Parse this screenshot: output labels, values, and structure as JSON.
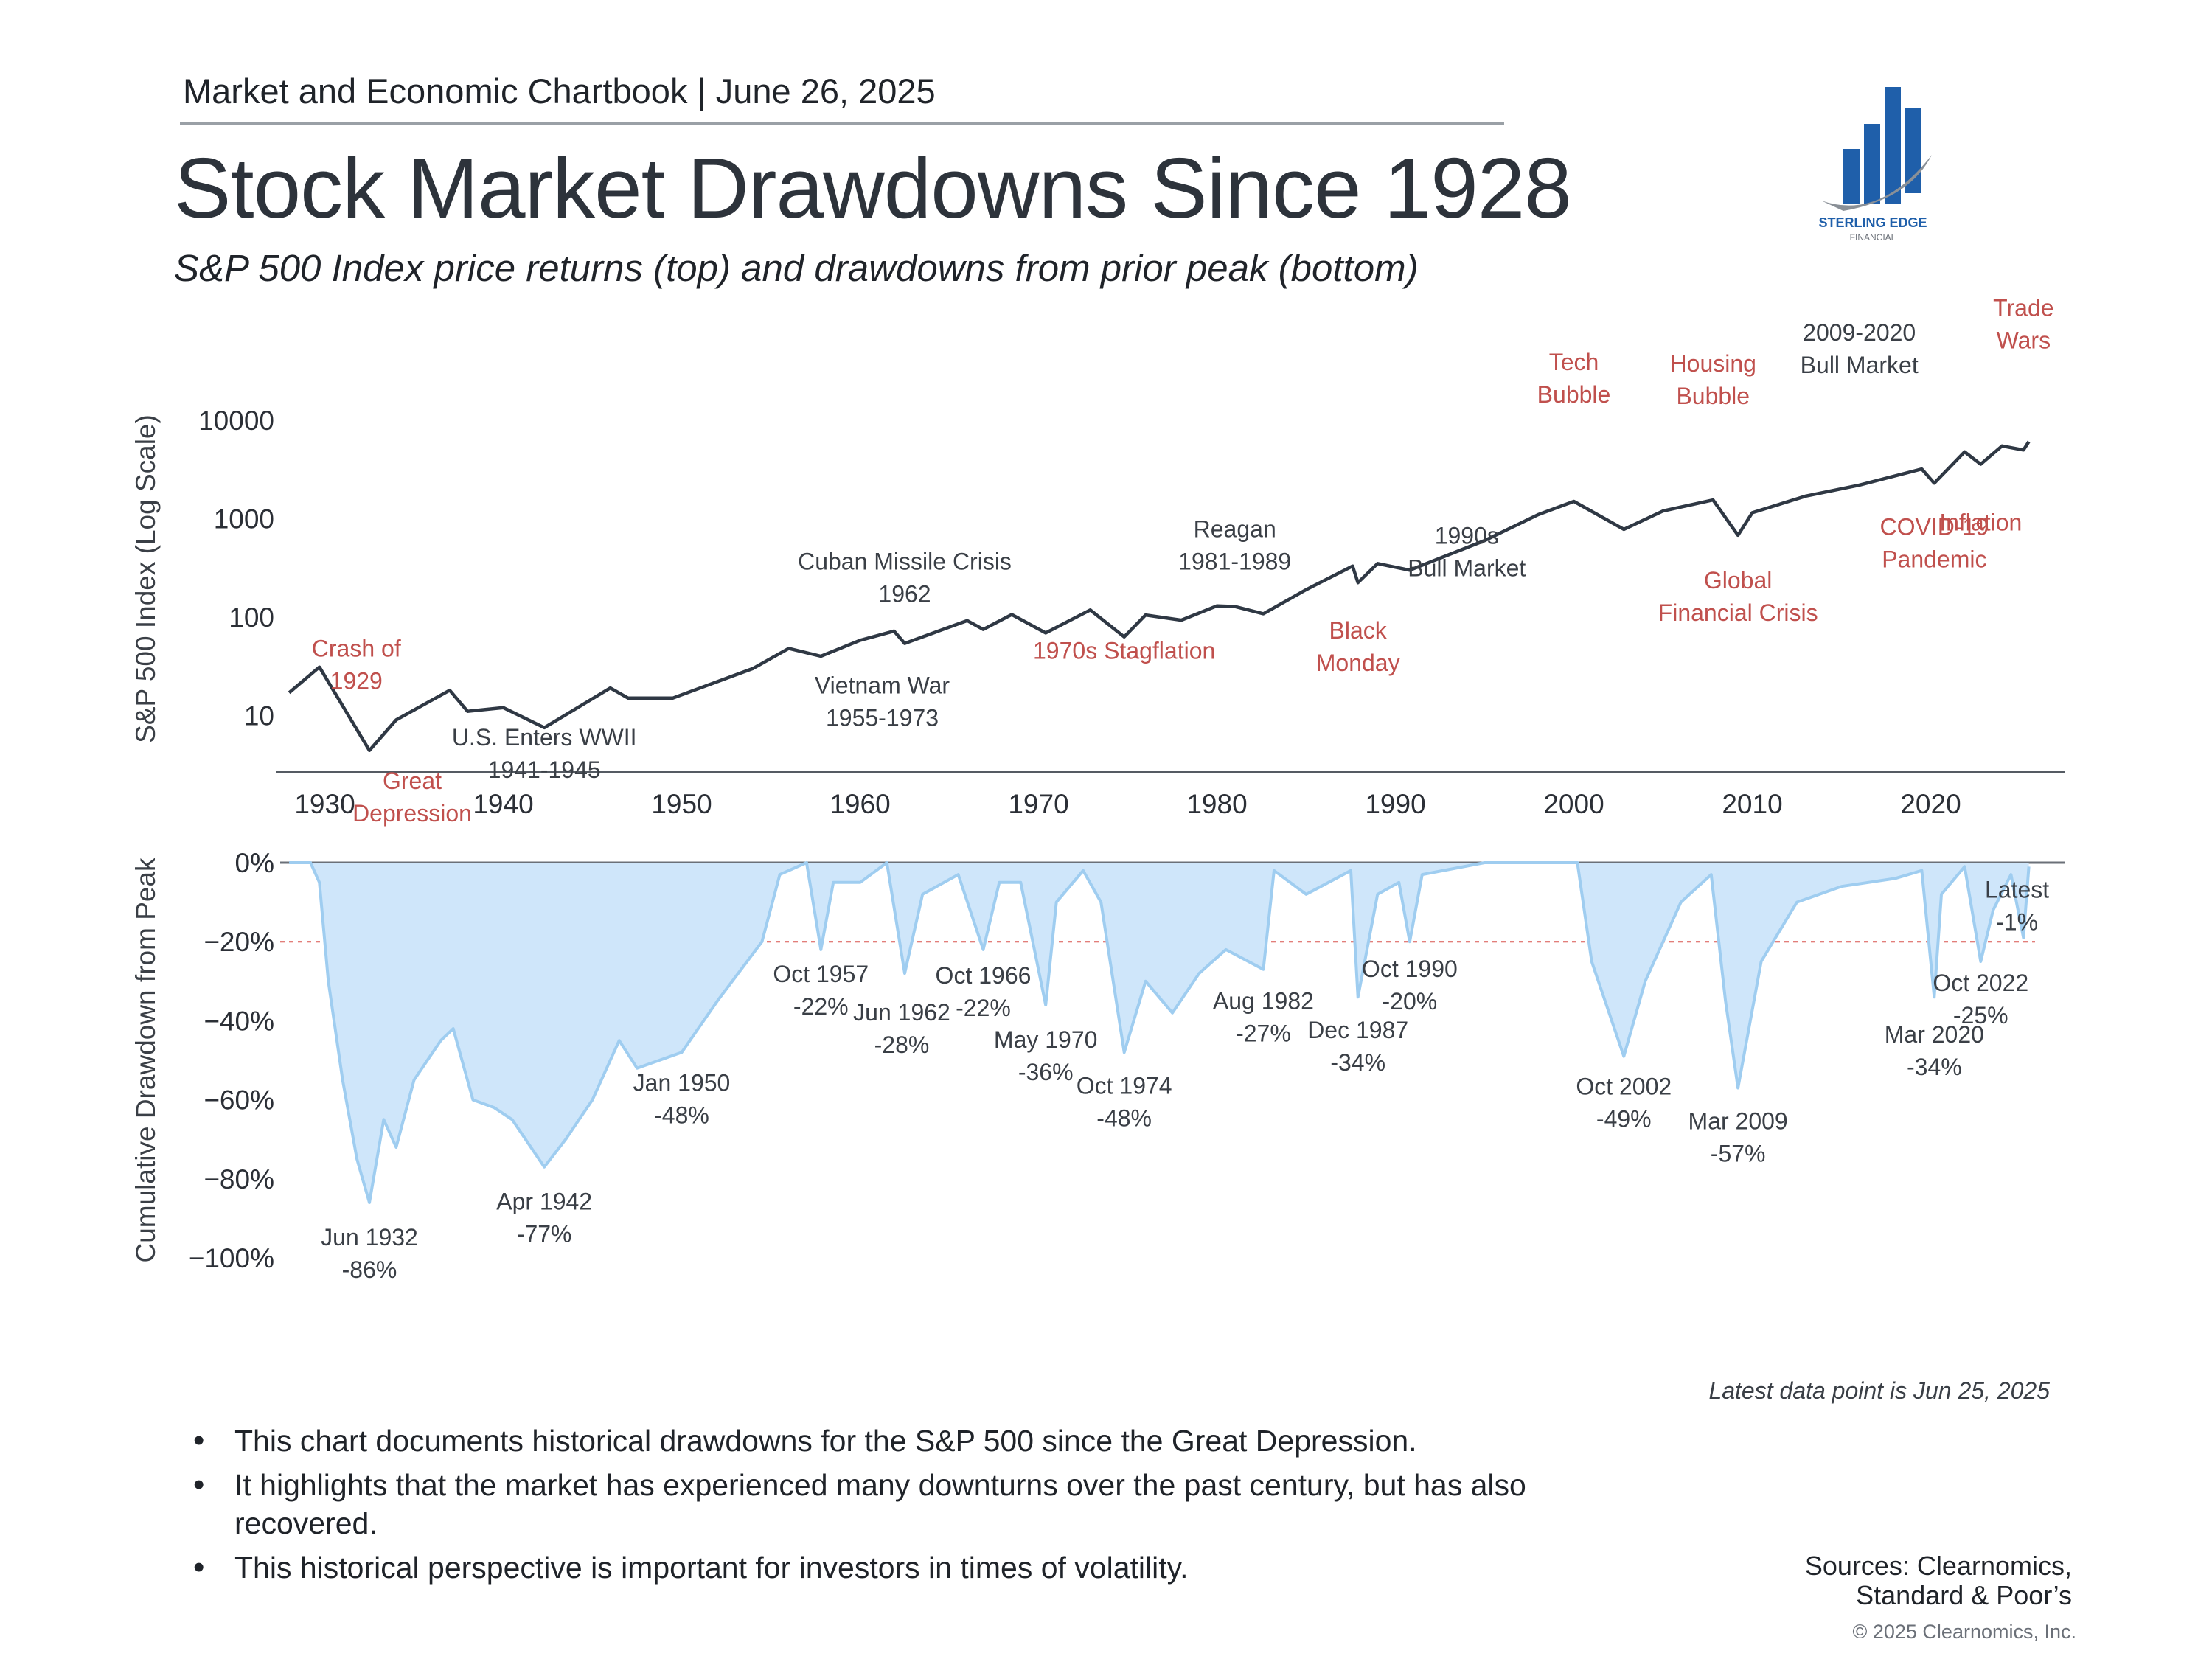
{
  "header": {
    "chartbook": "Market and Economic Chartbook | June 26, 2025",
    "title": "Stock Market Drawdowns Since 1928",
    "subtitle": "S&P 500 Index price returns (top) and drawdowns from prior peak (bottom)"
  },
  "logo": {
    "line1": "STERLING EDGE",
    "line2": "FINANCIAL",
    "icon": "bar-chart-swoosh-logo",
    "color": "#1f5faa"
  },
  "colors": {
    "line": "#2f3844",
    "drawdown_fill": "#cfe6fa",
    "drawdown_line": "#9fcdf0",
    "red_label": "#c0504d",
    "dark_label": "#3a3f46",
    "ref_line": "#d9534f"
  },
  "chart_data": [
    {
      "type": "line",
      "name": "price",
      "ylabel": "S&P 500 Index (Log Scale)",
      "y_scale": "log",
      "ylim": [
        3,
        20000
      ],
      "xlim": [
        1927.5,
        2027.5
      ],
      "yticks": [
        10000,
        1000,
        100,
        10
      ],
      "ytick_labels": [
        "10000",
        "1000",
        "100",
        "10"
      ],
      "xticks": [
        1930,
        1940,
        1950,
        1960,
        1970,
        1980,
        1990,
        2000,
        2010,
        2020
      ],
      "xtick_labels": [
        "1930",
        "1940",
        "1950",
        "1960",
        "1970",
        "1980",
        "1990",
        "2000",
        "2010",
        "2020"
      ],
      "x": [
        1928,
        1929.7,
        1932.5,
        1934,
        1937,
        1938,
        1940,
        1942.3,
        1946,
        1947,
        1949.5,
        1954,
        1956,
        1957.8,
        1960,
        1961.9,
        1962.5,
        1966,
        1966.9,
        1968.5,
        1970.4,
        1972.9,
        1974.8,
        1976,
        1978,
        1980,
        1981,
        1982.6,
        1985,
        1987.6,
        1987.9,
        1989,
        1990.8,
        1995,
        1998,
        2000,
        2002.8,
        2005,
        2007.8,
        2009.2,
        2010,
        2013,
        2016,
        2019.5,
        2020.2,
        2021.9,
        2022.8,
        2024,
        2025.2,
        2025.5
      ],
      "y": [
        17,
        31,
        4.4,
        9,
        18,
        11,
        12,
        7.5,
        19,
        15,
        15,
        30,
        48,
        40,
        58,
        72,
        54,
        92,
        75,
        106,
        69,
        118,
        63,
        105,
        93,
        130,
        128,
        108,
        190,
        330,
        224,
        350,
        300,
        600,
        1100,
        1500,
        780,
        1200,
        1550,
        680,
        1150,
        1700,
        2200,
        3200,
        2300,
        4790,
        3580,
        5500,
        5000,
        6090
      ],
      "annotations": [
        {
          "label": "Crash of\n1929",
          "x": 1929.7,
          "y": 31,
          "color": "red"
        },
        {
          "label": "Great\nDepression",
          "x": 1932.5,
          "y": 4.4,
          "color": "red"
        },
        {
          "label": "U.S. Enters WWII\n1941-1945",
          "x": 1942.3,
          "y": 7.5,
          "color": "dark"
        },
        {
          "label": "Vietnam War\n1955-1973",
          "x": 1960,
          "y": 58,
          "color": "dark"
        },
        {
          "label": "Cuban Missile Crisis\n1962",
          "x": 1962.5,
          "y": 54,
          "color": "dark"
        },
        {
          "label": "1970s Stagflation",
          "x": 1974.8,
          "y": 63,
          "color": "red"
        },
        {
          "label": "Reagan\n1981-1989",
          "x": 1981,
          "y": 128,
          "color": "dark"
        },
        {
          "label": "Black\nMonday",
          "x": 1987.9,
          "y": 224,
          "color": "red"
        },
        {
          "label": "1990s\nBull Market",
          "x": 1994,
          "y": 500,
          "color": "dark"
        },
        {
          "label": "Tech\nBubble",
          "x": 2000,
          "y": 1500,
          "color": "red"
        },
        {
          "label": "Housing\nBubble",
          "x": 2007.8,
          "y": 1550,
          "color": "red"
        },
        {
          "label": "Global\nFinancial Crisis",
          "x": 2009.2,
          "y": 680,
          "color": "red"
        },
        {
          "label": "2009-2020\nBull Market",
          "x": 2016,
          "y": 2200,
          "color": "dark"
        },
        {
          "label": "COVID-19\nPandemic",
          "x": 2020.2,
          "y": 2300,
          "color": "red"
        },
        {
          "label": "Inflation",
          "x": 2022.8,
          "y": 3580,
          "color": "red"
        },
        {
          "label": "Trade\nWars",
          "x": 2025.2,
          "y": 5000,
          "color": "red"
        }
      ]
    },
    {
      "type": "area",
      "name": "drawdown",
      "ylabel": "Cumulative Drawdown from Peak",
      "ylim": [
        -100,
        0
      ],
      "yticks": [
        0,
        -20,
        -40,
        -60,
        -80,
        -100
      ],
      "ytick_labels": [
        "0%",
        "−20%",
        "−40%",
        "−60%",
        "−80%",
        "−100%"
      ],
      "reference_line": -20,
      "xlim": [
        1927.5,
        2027.5
      ],
      "x": [
        1928,
        1929.2,
        1929.7,
        1930.2,
        1931,
        1931.8,
        1932.5,
        1933.3,
        1934,
        1935,
        1936.5,
        1937.2,
        1938.3,
        1939.5,
        1940.5,
        1942.3,
        1943.5,
        1945,
        1946.5,
        1947.5,
        1950,
        1952,
        1954.5,
        1955.5,
        1957,
        1957.8,
        1958.5,
        1960,
        1961.5,
        1962.5,
        1963.5,
        1965.5,
        1966.9,
        1967.8,
        1969,
        1970.4,
        1971,
        1972.5,
        1973.5,
        1974.8,
        1976,
        1977.5,
        1979,
        1980.5,
        1982.6,
        1983.2,
        1985,
        1987.5,
        1987.9,
        1989,
        1990.2,
        1990.8,
        1991.5,
        1995,
        1998,
        2000.2,
        2001,
        2002.8,
        2004,
        2006,
        2007.7,
        2008.5,
        2009.2,
        2010.5,
        2012.5,
        2015,
        2018,
        2019.5,
        2020.2,
        2020.6,
        2021.9,
        2022.8,
        2023.5,
        2024.5,
        2025.2,
        2025.5
      ],
      "y": [
        0,
        0,
        -5,
        -30,
        -55,
        -75,
        -86,
        -65,
        -72,
        -55,
        -45,
        -42,
        -60,
        -62,
        -65,
        -77,
        -70,
        -60,
        -45,
        -52,
        -48,
        -35,
        -20,
        -3,
        0,
        -22,
        -5,
        -5,
        0,
        -28,
        -8,
        -3,
        -22,
        -5,
        -5,
        -36,
        -10,
        -2,
        -10,
        -48,
        -30,
        -38,
        -28,
        -22,
        -27,
        -2,
        -8,
        -2,
        -34,
        -8,
        -5,
        -20,
        -3,
        0,
        0,
        0,
        -25,
        -49,
        -30,
        -10,
        -3,
        -35,
        -57,
        -25,
        -10,
        -6,
        -4,
        -2,
        -34,
        -8,
        -1,
        -25,
        -12,
        -3,
        -19,
        -1
      ],
      "annotations": [
        {
          "label": "Jun 1932\n-86%",
          "x": 1932.5,
          "y": -86
        },
        {
          "label": "Apr 1942\n-77%",
          "x": 1942.3,
          "y": -77
        },
        {
          "label": "Jan 1950\n-48%",
          "x": 1950,
          "y": -48
        },
        {
          "label": "Oct 1957\n-22%",
          "x": 1957.8,
          "y": -22
        },
        {
          "label": "Jun 1962\n-28%",
          "x": 1962.5,
          "y": -28
        },
        {
          "label": "Oct 1966\n-22%",
          "x": 1966.9,
          "y": -22
        },
        {
          "label": "May 1970\n-36%",
          "x": 1970.4,
          "y": -36
        },
        {
          "label": "Oct 1974\n-48%",
          "x": 1974.8,
          "y": -48
        },
        {
          "label": "Aug 1982\n-27%",
          "x": 1982.6,
          "y": -27
        },
        {
          "label": "Dec 1987\n-34%",
          "x": 1987.9,
          "y": -34
        },
        {
          "label": "Oct 1990\n-20%",
          "x": 1990.8,
          "y": -20
        },
        {
          "label": "Oct 2002\n-49%",
          "x": 2002.8,
          "y": -49
        },
        {
          "label": "Mar 2009\n-57%",
          "x": 2009.2,
          "y": -57
        },
        {
          "label": "Mar 2020\n-34%",
          "x": 2020.2,
          "y": -34
        },
        {
          "label": "Oct 2022\n-25%",
          "x": 2022.8,
          "y": -25
        },
        {
          "label": "Latest\n-1%",
          "x": 2025.5,
          "y": -1
        }
      ]
    }
  ],
  "latest_note": "Latest data point is Jun 25, 2025",
  "bullets": [
    "This chart documents historical drawdowns for the S&P 500 since the Great Depression.",
    "It highlights that the market has experienced many downturns over the past century, but has also recovered.",
    "This historical perspective is important for investors in times of volatility."
  ],
  "sources": {
    "line1": "Sources: Clearnomics,",
    "line2": "Standard & Poor’s"
  },
  "copyright": "© 2025 Clearnomics, Inc."
}
